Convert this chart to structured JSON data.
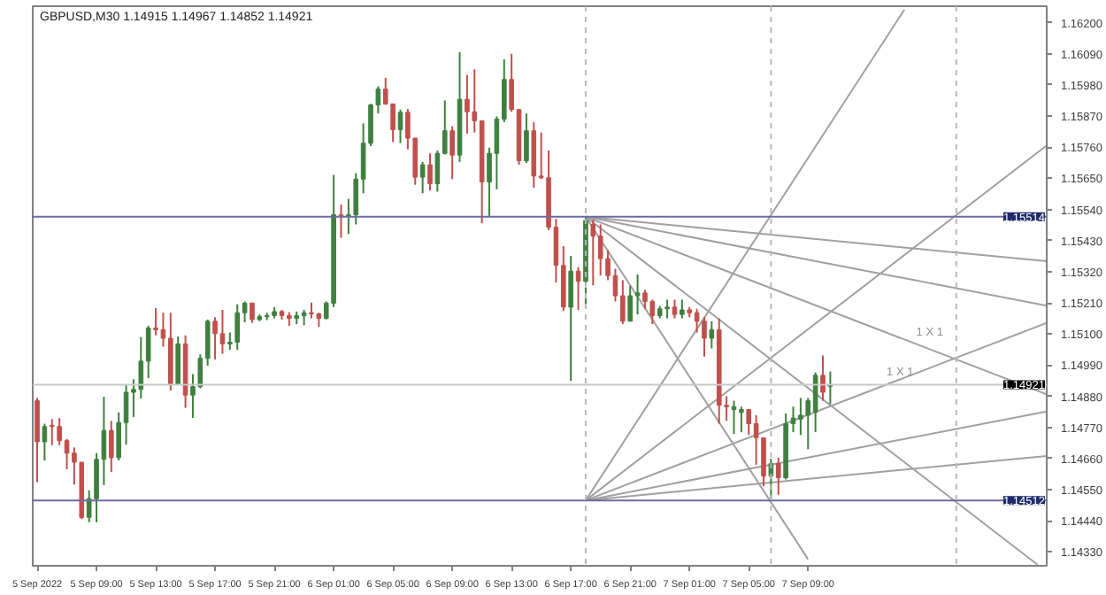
{
  "chart_data": {
    "type": "candlestick",
    "title": "GBPUSD,M30  1.14915 1.14967 1.14852 1.14921",
    "x": [
      "2022-09-05T05:00",
      "2022-09-05T05:30",
      "2022-09-05T06:00",
      "2022-09-05T06:30",
      "2022-09-05T07:00",
      "2022-09-05T07:30",
      "2022-09-05T08:00",
      "2022-09-05T08:30",
      "2022-09-05T09:00",
      "2022-09-05T09:30",
      "2022-09-05T10:00",
      "2022-09-05T10:30",
      "2022-09-05T11:00",
      "2022-09-05T11:30",
      "2022-09-05T12:00",
      "2022-09-05T12:30",
      "2022-09-05T13:00",
      "2022-09-05T13:30",
      "2022-09-05T14:00",
      "2022-09-05T14:30",
      "2022-09-05T15:00",
      "2022-09-05T15:30",
      "2022-09-05T16:00",
      "2022-09-05T16:30",
      "2022-09-05T17:00",
      "2022-09-05T17:30",
      "2022-09-05T18:00",
      "2022-09-05T18:30",
      "2022-09-05T19:00",
      "2022-09-05T19:30",
      "2022-09-05T20:00",
      "2022-09-05T20:30",
      "2022-09-05T21:00",
      "2022-09-05T21:30",
      "2022-09-05T22:00",
      "2022-09-05T22:30",
      "2022-09-05T23:00",
      "2022-09-05T23:30",
      "2022-09-06T00:00",
      "2022-09-06T00:30",
      "2022-09-06T01:00",
      "2022-09-06T01:30",
      "2022-09-06T02:00",
      "2022-09-06T02:30",
      "2022-09-06T03:00",
      "2022-09-06T03:30",
      "2022-09-06T04:00",
      "2022-09-06T04:30",
      "2022-09-06T05:00",
      "2022-09-06T05:30",
      "2022-09-06T06:00",
      "2022-09-06T06:30",
      "2022-09-06T07:00",
      "2022-09-06T07:30",
      "2022-09-06T08:00",
      "2022-09-06T08:30",
      "2022-09-06T09:00",
      "2022-09-06T09:30",
      "2022-09-06T10:00",
      "2022-09-06T10:30",
      "2022-09-06T11:00",
      "2022-09-06T11:30",
      "2022-09-06T12:00",
      "2022-09-06T12:30",
      "2022-09-06T13:00",
      "2022-09-06T13:30",
      "2022-09-06T14:00",
      "2022-09-06T14:30",
      "2022-09-06T15:00",
      "2022-09-06T15:30",
      "2022-09-06T16:00",
      "2022-09-06T16:30",
      "2022-09-06T17:00",
      "2022-09-06T17:30",
      "2022-09-06T18:00",
      "2022-09-06T18:30",
      "2022-09-06T19:00",
      "2022-09-06T19:30",
      "2022-09-06T20:00",
      "2022-09-06T20:30",
      "2022-09-06T21:00",
      "2022-09-06T21:30",
      "2022-09-06T22:00",
      "2022-09-06T22:30",
      "2022-09-06T23:00",
      "2022-09-06T23:30",
      "2022-09-07T00:00",
      "2022-09-07T00:30",
      "2022-09-07T01:00",
      "2022-09-07T01:30",
      "2022-09-07T02:00",
      "2022-09-07T02:30",
      "2022-09-07T03:00",
      "2022-09-07T03:30",
      "2022-09-07T04:00",
      "2022-09-07T04:30",
      "2022-09-07T05:00",
      "2022-09-07T05:30",
      "2022-09-07T06:00",
      "2022-09-07T06:30",
      "2022-09-07T07:00",
      "2022-09-07T07:30",
      "2022-09-07T08:00",
      "2022-09-07T08:30",
      "2022-09-07T09:00",
      "2022-09-07T09:30",
      "2022-09-07T10:00",
      "2022-09-07T10:30"
    ],
    "ohlc": [
      [
        1.14864,
        1.14874,
        1.14576,
        1.14719
      ],
      [
        1.14719,
        1.14783,
        1.14653,
        1.14773
      ],
      [
        1.14777,
        1.14799,
        1.14707,
        1.14773
      ],
      [
        1.14773,
        1.14803,
        1.14707,
        1.14723
      ],
      [
        1.14723,
        1.14729,
        1.14622,
        1.14679
      ],
      [
        1.14679,
        1.14699,
        1.14568,
        1.14647
      ],
      [
        1.14647,
        1.14647,
        1.14446,
        1.14452
      ],
      [
        1.14452,
        1.14548,
        1.14435,
        1.14518
      ],
      [
        1.14518,
        1.14679,
        1.14435,
        1.14657
      ],
      [
        1.14657,
        1.14878,
        1.14566,
        1.14759
      ],
      [
        1.14759,
        1.14793,
        1.14612,
        1.14663
      ],
      [
        1.14663,
        1.14823,
        1.14653,
        1.14787
      ],
      [
        1.14787,
        1.1492,
        1.14709,
        1.14894
      ],
      [
        1.14894,
        1.1494,
        1.14807,
        1.14904
      ],
      [
        1.14904,
        1.15089,
        1.14872,
        1.15004
      ],
      [
        1.15004,
        1.15129,
        1.14944,
        1.15121
      ],
      [
        1.15121,
        1.15191,
        1.15095,
        1.15115
      ],
      [
        1.15115,
        1.15175,
        1.15055,
        1.15085
      ],
      [
        1.15085,
        1.15175,
        1.149,
        1.14924
      ],
      [
        1.14924,
        1.15091,
        1.14924,
        1.15065
      ],
      [
        1.15065,
        1.15095,
        1.14839,
        1.14884
      ],
      [
        1.14884,
        1.14958,
        1.14803,
        1.14914
      ],
      [
        1.14914,
        1.15028,
        1.14908,
        1.15014
      ],
      [
        1.15014,
        1.15151,
        1.14988,
        1.15145
      ],
      [
        1.15145,
        1.15159,
        1.1501,
        1.15101
      ],
      [
        1.15101,
        1.15185,
        1.1503,
        1.15065
      ],
      [
        1.15065,
        1.15105,
        1.15044,
        1.15071
      ],
      [
        1.15071,
        1.15205,
        1.15044,
        1.15175
      ],
      [
        1.15175,
        1.15215,
        1.15141,
        1.15209
      ],
      [
        1.15209,
        1.15211,
        1.15139,
        1.15151
      ],
      [
        1.15151,
        1.15169,
        1.15145,
        1.15161
      ],
      [
        1.15161,
        1.15175,
        1.15149,
        1.15165
      ],
      [
        1.15165,
        1.15195,
        1.15155,
        1.15179
      ],
      [
        1.15179,
        1.15185,
        1.15151,
        1.15165
      ],
      [
        1.15165,
        1.15177,
        1.15129,
        1.15155
      ],
      [
        1.15155,
        1.15179,
        1.15135,
        1.15165
      ],
      [
        1.15165,
        1.15185,
        1.15131,
        1.15175
      ],
      [
        1.15175,
        1.15211,
        1.15155,
        1.15171
      ],
      [
        1.15171,
        1.15175,
        1.15125,
        1.15155
      ],
      [
        1.15155,
        1.15215,
        1.15151,
        1.15209
      ],
      [
        1.15209,
        1.15662,
        1.15195,
        1.15521
      ],
      [
        1.15521,
        1.15557,
        1.1544,
        1.15517
      ],
      [
        1.15517,
        1.15577,
        1.15453,
        1.15521
      ],
      [
        1.15521,
        1.15668,
        1.15487,
        1.15647
      ],
      [
        1.15647,
        1.15844,
        1.15597,
        1.15774
      ],
      [
        1.15774,
        1.15913,
        1.15764,
        1.15909
      ],
      [
        1.15909,
        1.15975,
        1.15879,
        1.15965
      ],
      [
        1.15965,
        1.16005,
        1.15909,
        1.15913
      ],
      [
        1.15913,
        1.15913,
        1.15778,
        1.15822
      ],
      [
        1.15822,
        1.15893,
        1.15774,
        1.15883
      ],
      [
        1.15883,
        1.15895,
        1.15752,
        1.15792
      ],
      [
        1.15792,
        1.15792,
        1.15627,
        1.15654
      ],
      [
        1.15654,
        1.15708,
        1.15597,
        1.15698
      ],
      [
        1.15698,
        1.15738,
        1.15607,
        1.15631
      ],
      [
        1.15631,
        1.15748,
        1.15603,
        1.15738
      ],
      [
        1.15738,
        1.15925,
        1.15734,
        1.15818
      ],
      [
        1.15818,
        1.15834,
        1.15647,
        1.15732
      ],
      [
        1.15732,
        1.16096,
        1.15708,
        1.15929
      ],
      [
        1.15929,
        1.16015,
        1.15808,
        1.15885
      ],
      [
        1.15885,
        1.16035,
        1.15812,
        1.15853
      ],
      [
        1.15853,
        1.15853,
        1.15491,
        1.15637
      ],
      [
        1.15637,
        1.15758,
        1.15517,
        1.15738
      ],
      [
        1.15738,
        1.15869,
        1.15611,
        1.15859
      ],
      [
        1.15859,
        1.1607,
        1.15848,
        1.15999
      ],
      [
        1.15999,
        1.1609,
        1.15885,
        1.15893
      ],
      [
        1.15893,
        1.15893,
        1.15698,
        1.15712
      ],
      [
        1.15712,
        1.15879,
        1.15704,
        1.15818
      ],
      [
        1.15818,
        1.15848,
        1.15617,
        1.15658
      ],
      [
        1.15658,
        1.15812,
        1.15647,
        1.15652
      ],
      [
        1.15652,
        1.15748,
        1.15467,
        1.15477
      ],
      [
        1.15477,
        1.15507,
        1.15282,
        1.15342
      ],
      [
        1.15342,
        1.1541,
        1.15181,
        1.15195
      ],
      [
        1.15195,
        1.15376,
        1.14934,
        1.15322
      ],
      [
        1.15322,
        1.15336,
        1.15185,
        1.15286
      ],
      [
        1.15286,
        1.15513,
        1.15195,
        1.15501
      ],
      [
        1.15487,
        1.15503,
        1.15272,
        1.15446
      ],
      [
        1.15446,
        1.15487,
        1.15306,
        1.15366
      ],
      [
        1.15366,
        1.15396,
        1.1529,
        1.15306
      ],
      [
        1.15306,
        1.1533,
        1.15215,
        1.15235
      ],
      [
        1.15235,
        1.1529,
        1.15135,
        1.15145
      ],
      [
        1.15145,
        1.1527,
        1.15145,
        1.15235
      ],
      [
        1.15235,
        1.1531,
        1.15169,
        1.15245
      ],
      [
        1.15245,
        1.15256,
        1.15189,
        1.15215
      ],
      [
        1.15215,
        1.15221,
        1.15135,
        1.15165
      ],
      [
        1.15165,
        1.15199,
        1.15155,
        1.15189
      ],
      [
        1.15189,
        1.15221,
        1.15155,
        1.15195
      ],
      [
        1.15195,
        1.15221,
        1.15155,
        1.15169
      ],
      [
        1.15169,
        1.15221,
        1.15155,
        1.15185
      ],
      [
        1.15185,
        1.15195,
        1.15159,
        1.15175
      ],
      [
        1.15175,
        1.15189,
        1.15105,
        1.15145
      ],
      [
        1.15145,
        1.15159,
        1.1502,
        1.15085
      ],
      [
        1.15085,
        1.15145,
        1.15049,
        1.15115
      ],
      [
        1.15115,
        1.15155,
        1.14783,
        1.14848
      ],
      [
        1.14848,
        1.1488,
        1.14793,
        1.14843
      ],
      [
        1.14833,
        1.14864,
        1.14747,
        1.14843
      ],
      [
        1.14823,
        1.14843,
        1.14753,
        1.14833
      ],
      [
        1.14833,
        1.14833,
        1.14743,
        1.14783
      ],
      [
        1.14783,
        1.14813,
        1.14638,
        1.14733
      ],
      [
        1.14733,
        1.14733,
        1.14562,
        1.14598
      ],
      [
        1.14598,
        1.14659,
        1.14512,
        1.14642
      ],
      [
        1.14642,
        1.14663,
        1.14532,
        1.14592
      ],
      [
        1.14592,
        1.14819,
        1.14586,
        1.14783
      ],
      [
        1.14783,
        1.14843,
        1.14753,
        1.14803
      ],
      [
        1.14799,
        1.14874,
        1.14743,
        1.14813
      ],
      [
        1.14813,
        1.14874,
        1.14693,
        1.14864
      ],
      [
        1.14823,
        1.14964,
        1.14753,
        1.14954
      ],
      [
        1.14954,
        1.15024,
        1.14864,
        1.14894
      ],
      [
        1.14915,
        1.14967,
        1.14852,
        1.14921
      ]
    ],
    "colors": [
      "#c0504d",
      "#3f7f3f",
      "#c0504d",
      "#c0504d",
      "#c0504d",
      "#c0504d",
      "#c0504d",
      "#3f7f3f",
      "#3f7f3f",
      "#3f7f3f",
      "#c0504d",
      "#3f7f3f",
      "#3f7f3f",
      "#3f7f3f",
      "#3f7f3f",
      "#3f7f3f",
      "#c0504d",
      "#c0504d",
      "#c0504d",
      "#3f7f3f",
      "#c0504d",
      "#3f7f3f",
      "#3f7f3f",
      "#3f7f3f",
      "#c0504d",
      "#c0504d",
      "#3f7f3f",
      "#3f7f3f",
      "#3f7f3f",
      "#c0504d",
      "#3f7f3f",
      "#3f7f3f",
      "#3f7f3f",
      "#c0504d",
      "#c0504d",
      "#3f7f3f",
      "#3f7f3f",
      "#c0504d",
      "#c0504d",
      "#3f7f3f",
      "#3f7f3f",
      "#c0504d",
      "#3f7f3f",
      "#3f7f3f",
      "#3f7f3f",
      "#3f7f3f",
      "#3f7f3f",
      "#c0504d",
      "#c0504d",
      "#3f7f3f",
      "#c0504d",
      "#c0504d",
      "#3f7f3f",
      "#c0504d",
      "#3f7f3f",
      "#3f7f3f",
      "#c0504d",
      "#3f7f3f",
      "#c0504d",
      "#c0504d",
      "#c0504d",
      "#3f7f3f",
      "#3f7f3f",
      "#3f7f3f",
      "#c0504d",
      "#c0504d",
      "#3f7f3f",
      "#c0504d",
      "#c0504d",
      "#c0504d",
      "#c0504d",
      "#c0504d",
      "#3f7f3f",
      "#c0504d",
      "#3f7f3f",
      "#c0504d",
      "#c0504d",
      "#c0504d",
      "#c0504d",
      "#c0504d",
      "#3f7f3f",
      "#3f7f3f",
      "#c0504d",
      "#c0504d",
      "#3f7f3f",
      "#3f7f3f",
      "#c0504d",
      "#3f7f3f",
      "#c0504d",
      "#c0504d",
      "#c0504d",
      "#3f7f3f",
      "#c0504d",
      "#c0504d",
      "#3f7f3f",
      "#3f7f3f",
      "#c0504d",
      "#c0504d",
      "#c0504d",
      "#3f7f3f",
      "#c0504d",
      "#3f7f3f",
      "#3f7f3f",
      "#3f7f3f",
      "#3f7f3f",
      "#3f7f3f",
      "#c0504d",
      "#3f7f3f"
    ],
    "series": [
      {
        "type": "line",
        "x": [
          "2022-09-06T18:00",
          "2022-09-08T01:06"
        ],
        "values": [
          1.15514,
          1.15357
        ],
        "color": "#a0a0a0"
      },
      {
        "type": "line",
        "x": [
          "2022-09-06T18:00",
          "2022-09-08T01:06"
        ],
        "values": [
          1.15514,
          1.152
        ],
        "color": "#a0a0a0"
      },
      {
        "type": "line",
        "x": [
          "2022-09-06T18:00",
          "2022-09-08T01:06"
        ],
        "values": [
          1.15514,
          1.14887
        ],
        "color": "#a0a0a0"
      },
      {
        "type": "line",
        "x": [
          "2022-09-06T18:00",
          "2022-09-08T00:30"
        ],
        "values": [
          1.15514,
          1.14284
        ],
        "color": "#a0a0a0"
      },
      {
        "type": "line",
        "x": [
          "2022-09-06T18:00",
          "2022-09-07T09:00"
        ],
        "values": [
          1.15514,
          1.14304
        ],
        "color": "#a0a0a0"
      },
      {
        "type": "line",
        "x": [
          "2022-09-06T18:00",
          "2022-09-08T01:06"
        ],
        "values": [
          1.14512,
          1.14669
        ],
        "color": "#a0a0a0"
      },
      {
        "type": "line",
        "x": [
          "2022-09-06T18:00",
          "2022-09-08T01:06"
        ],
        "values": [
          1.14512,
          1.14826
        ],
        "color": "#a0a0a0"
      },
      {
        "type": "line",
        "x": [
          "2022-09-06T18:00",
          "2022-09-08T01:06"
        ],
        "values": [
          1.14512,
          1.15139
        ],
        "color": "#a0a0a0"
      },
      {
        "type": "line",
        "x": [
          "2022-09-06T18:00",
          "2022-09-08T01:06"
        ],
        "values": [
          1.14512,
          1.15766
        ],
        "color": "#a0a0a0"
      },
      {
        "type": "line",
        "x": [
          "2022-09-06T18:00",
          "2022-09-07T15:30"
        ],
        "values": [
          1.14512,
          1.16246
        ],
        "color": "#a0a0a0"
      }
    ],
    "annotations": [
      {
        "text": "1 X 1",
        "x": "2022-09-07T16:18",
        "y": 1.15064
      },
      {
        "text": "1 X 1",
        "x": "2022-09-07T14:18",
        "y": 1.14921
      }
    ],
    "ref_lines": [
      {
        "axis": "y",
        "value": 1.15514,
        "label": "1.15514",
        "color": "#6b6ba0"
      },
      {
        "axis": "y",
        "value": 1.14512,
        "label": "1.14512",
        "color": "#6b6ba0"
      },
      {
        "axis": "y",
        "value": 1.14921,
        "label": "1.14921",
        "color": "#c8c8c8"
      },
      {
        "axis": "x",
        "value": "2022-09-06T18:00",
        "label": null,
        "color": "#b8b8b8",
        "line_style": "dashed"
      },
      {
        "axis": "x",
        "value": "2022-09-07T06:30",
        "label": null,
        "color": "#b8b8b8",
        "line_style": "dashed"
      },
      {
        "axis": "x",
        "value": "2022-09-07T19:00",
        "label": null,
        "color": "#b8b8b8",
        "line_style": "dashed"
      }
    ],
    "xlim": [
      "2022-09-05T04:42",
      "2022-09-08T01:06"
    ],
    "ylim": [
      1.14281,
      1.16258
    ],
    "xticks": [
      {
        "value": "2022-09-05T05:00",
        "label": "5 Sep 2022"
      },
      {
        "value": "2022-09-05T09:00",
        "label": "5 Sep 09:00"
      },
      {
        "value": "2022-09-05T13:00",
        "label": "5 Sep 13:00"
      },
      {
        "value": "2022-09-05T17:00",
        "label": "5 Sep 17:00"
      },
      {
        "value": "2022-09-05T21:00",
        "label": "5 Sep 21:00"
      },
      {
        "value": "2022-09-06T01:00",
        "label": "6 Sep 01:00"
      },
      {
        "value": "2022-09-06T05:00",
        "label": "6 Sep 05:00"
      },
      {
        "value": "2022-09-06T09:00",
        "label": "6 Sep 09:00"
      },
      {
        "value": "2022-09-06T13:00",
        "label": "6 Sep 13:00"
      },
      {
        "value": "2022-09-06T17:00",
        "label": "6 Sep 17:00"
      },
      {
        "value": "2022-09-06T21:00",
        "label": "6 Sep 21:00"
      },
      {
        "value": "2022-09-07T01:00",
        "label": "7 Sep 01:00"
      },
      {
        "value": "2022-09-07T05:00",
        "label": "7 Sep 05:00"
      },
      {
        "value": "2022-09-07T09:00",
        "label": "7 Sep 09:00"
      }
    ],
    "yticks": [
      {
        "value": 1.162,
        "label": "1.16200"
      },
      {
        "value": 1.1609,
        "label": "1.16090"
      },
      {
        "value": 1.1598,
        "label": "1.15980"
      },
      {
        "value": 1.1587,
        "label": "1.15870"
      },
      {
        "value": 1.1576,
        "label": "1.15760"
      },
      {
        "value": 1.1565,
        "label": "1.15650"
      },
      {
        "value": 1.1554,
        "label": "1.15540"
      },
      {
        "value": 1.1543,
        "label": "1.15430"
      },
      {
        "value": 1.1532,
        "label": "1.15320"
      },
      {
        "value": 1.1521,
        "label": "1.15210"
      },
      {
        "value": 1.151,
        "label": "1.15100"
      },
      {
        "value": 1.1499,
        "label": "1.14990"
      },
      {
        "value": 1.1488,
        "label": "1.14880"
      },
      {
        "value": 1.1477,
        "label": "1.14770"
      },
      {
        "value": 1.1466,
        "label": "1.14660"
      },
      {
        "value": 1.1455,
        "label": "1.14550"
      },
      {
        "value": 1.1444,
        "label": "1.14440"
      },
      {
        "value": 1.1433,
        "label": "1.14330"
      }
    ]
  }
}
